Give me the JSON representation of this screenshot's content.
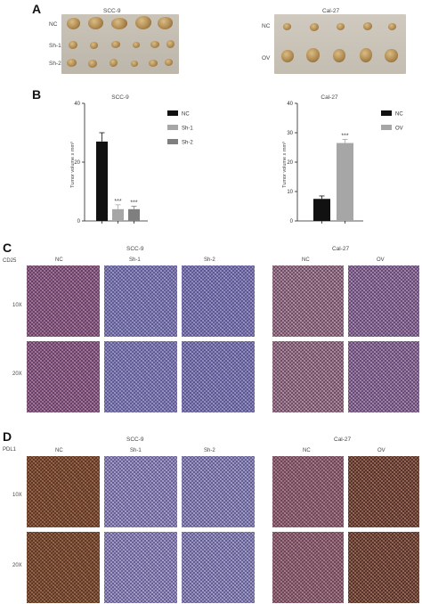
{
  "panels": {
    "A": {
      "letter": "A",
      "left": {
        "title": "SCC-9",
        "rows": [
          "NC",
          "Sh-1",
          "Sh-2"
        ]
      },
      "right": {
        "title": "Cal-27",
        "rows": [
          "NC",
          "OV"
        ]
      }
    },
    "B": {
      "letter": "B"
    },
    "C": {
      "letter": "C",
      "stain": "CD25",
      "left": {
        "title": "SCC-9",
        "cols": [
          "NC",
          "Sh-1",
          "Sh-2"
        ]
      },
      "right": {
        "title": "Cal-27",
        "cols": [
          "NC",
          "OV"
        ]
      },
      "rows": [
        "10X",
        "20X"
      ]
    },
    "D": {
      "letter": "D",
      "stain": "PDL1",
      "left": {
        "title": "SCC-9",
        "cols": [
          "NC",
          "Sh-1",
          "Sh-2"
        ]
      },
      "right": {
        "title": "Cal-27",
        "cols": [
          "NC",
          "OV"
        ]
      },
      "rows": [
        "10X",
        "20X"
      ]
    }
  },
  "chart_data": [
    {
      "type": "bar",
      "title": "SCC-9",
      "ylabel": "Tumor volume x mm³",
      "categories": [
        "NC",
        "Sh-1",
        "Sh-2"
      ],
      "values": [
        27,
        4,
        4
      ],
      "errors": [
        3,
        1.5,
        1
      ],
      "significance": [
        "",
        "***",
        "***"
      ],
      "colors": [
        "#111111",
        "#a6a6a6",
        "#7f7f7f"
      ],
      "ylim": [
        0,
        40
      ],
      "yticks": [
        0,
        20,
        40
      ],
      "legend": [
        "NC",
        "Sh-1",
        "Sh-2"
      ],
      "legend_position": "right"
    },
    {
      "type": "bar",
      "title": "Cal-27",
      "ylabel": "Tumor volume x mm³",
      "categories": [
        "NC",
        "OV"
      ],
      "values": [
        7.5,
        26.5
      ],
      "errors": [
        1,
        1.2
      ],
      "significance": [
        "",
        "***"
      ],
      "colors": [
        "#111111",
        "#a6a6a6"
      ],
      "ylim": [
        0,
        40
      ],
      "yticks": [
        0,
        10,
        20,
        30,
        40
      ],
      "legend": [
        "NC",
        "OV"
      ],
      "legend_position": "right"
    }
  ]
}
